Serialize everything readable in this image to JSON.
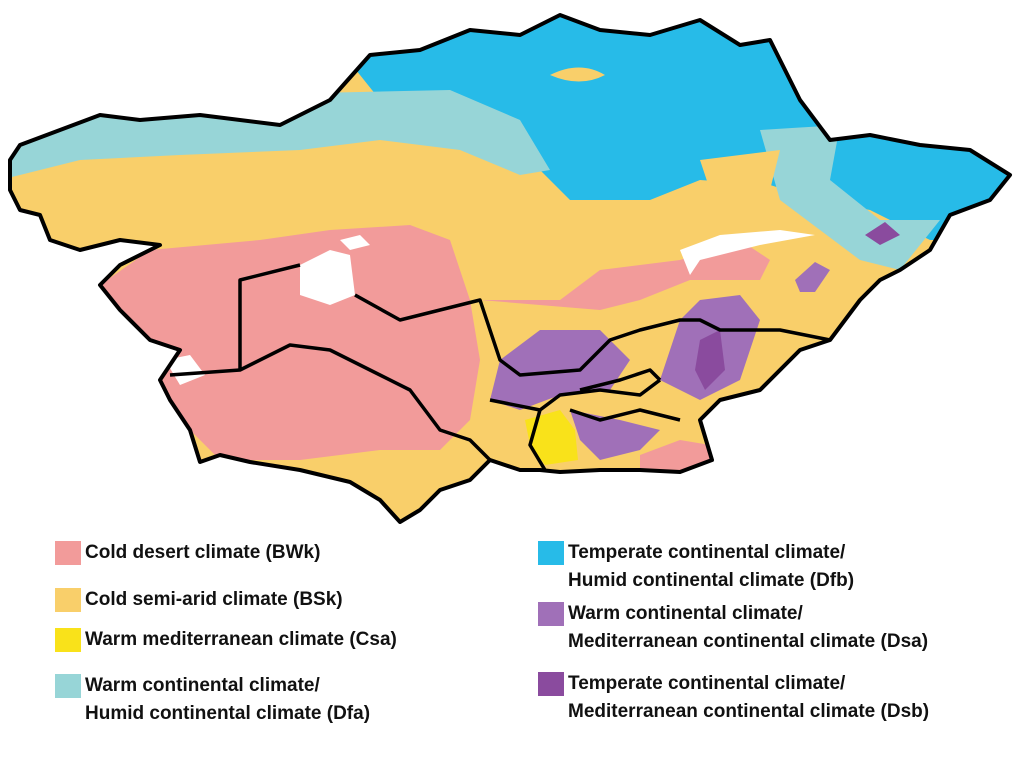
{
  "legend": [
    {
      "color": "#f29b9a",
      "lines": [
        "Cold desert climate (BWk)"
      ]
    },
    {
      "color": "#f9cf6a",
      "lines": [
        "Cold semi-arid climate (BSk)"
      ]
    },
    {
      "color": "#f9e21a",
      "lines": [
        "Warm mediterranean climate (Csa)"
      ]
    },
    {
      "color": "#97d5d7",
      "lines": [
        "Warm continental climate/",
        "Humid continental climate (Dfa)"
      ]
    },
    {
      "color": "#27bbe8",
      "lines": [
        "Temperate continental climate/",
        "Humid continental climate (Dfb)"
      ]
    },
    {
      "color": "#a070b8",
      "lines": [
        "Warm continental climate/",
        "Mediterranean continental climate (Dsa)"
      ]
    },
    {
      "color": "#8a4b9e",
      "lines": [
        "Temperate continental climate/",
        "Mediterranean continental climate (Dsb)"
      ]
    }
  ]
}
